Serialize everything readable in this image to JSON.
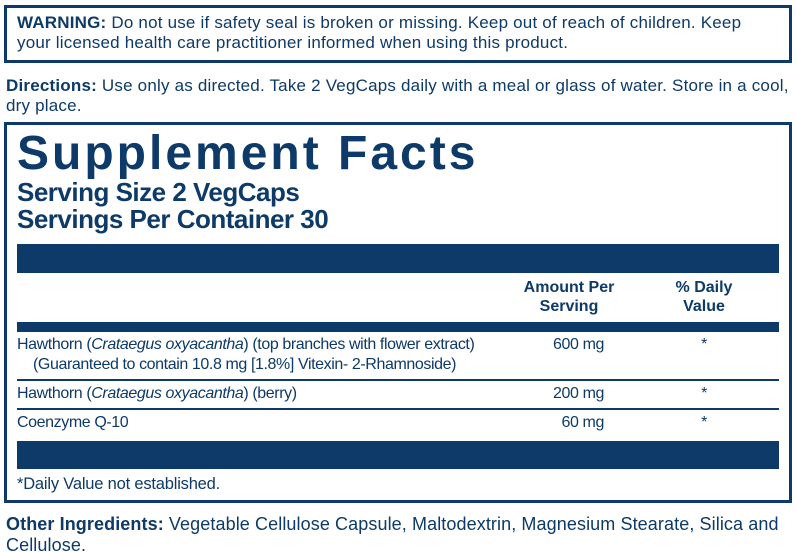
{
  "colors": {
    "navy": "#0d3a68",
    "background": "#ffffff"
  },
  "warning": {
    "label": "WARNING:",
    "text": " Do not use if safety seal is broken or missing. Keep out of reach of children. Keep your licensed health care practitioner informed when using this product."
  },
  "directions": {
    "label": "Directions:",
    "text": " Use only as directed. Take 2 VegCaps daily with a meal or glass of water. Store in a cool, dry place."
  },
  "panel": {
    "title": "Supplement Facts",
    "serving_size": "Serving Size 2 VegCaps",
    "servings_per_container": "Servings Per Container 30",
    "columns": {
      "amount_line1": "Amount Per",
      "amount_line2": "Serving",
      "daily_value_line1": "% Daily",
      "daily_value_line2": "Value"
    },
    "rows": [
      {
        "name_prefix": "Hawthorn (",
        "name_latin": "Crataegus oxyacantha",
        "name_suffix": ") (top branches with flower extract)",
        "note": "(Guaranteed to contain 10.8 mg [1.8%] Vitexin- 2-Rhamnoside)",
        "amount": "600 mg",
        "daily_value": "*"
      },
      {
        "name_prefix": "Hawthorn (",
        "name_latin": "Crataegus oxyacantha",
        "name_suffix": ") (berry)",
        "note": "",
        "amount": "200 mg",
        "daily_value": "*"
      },
      {
        "name_prefix": "Coenzyme Q-10",
        "name_latin": "",
        "name_suffix": "",
        "note": "",
        "amount": "60 mg",
        "daily_value": "*"
      }
    ],
    "footnote": "*Daily Value not established."
  },
  "other_ingredients": {
    "label": "Other Ingredients:",
    "text": " Vegetable Cellulose Capsule, Maltodextrin, Magnesium Stearate, Silica and Cellulose."
  }
}
